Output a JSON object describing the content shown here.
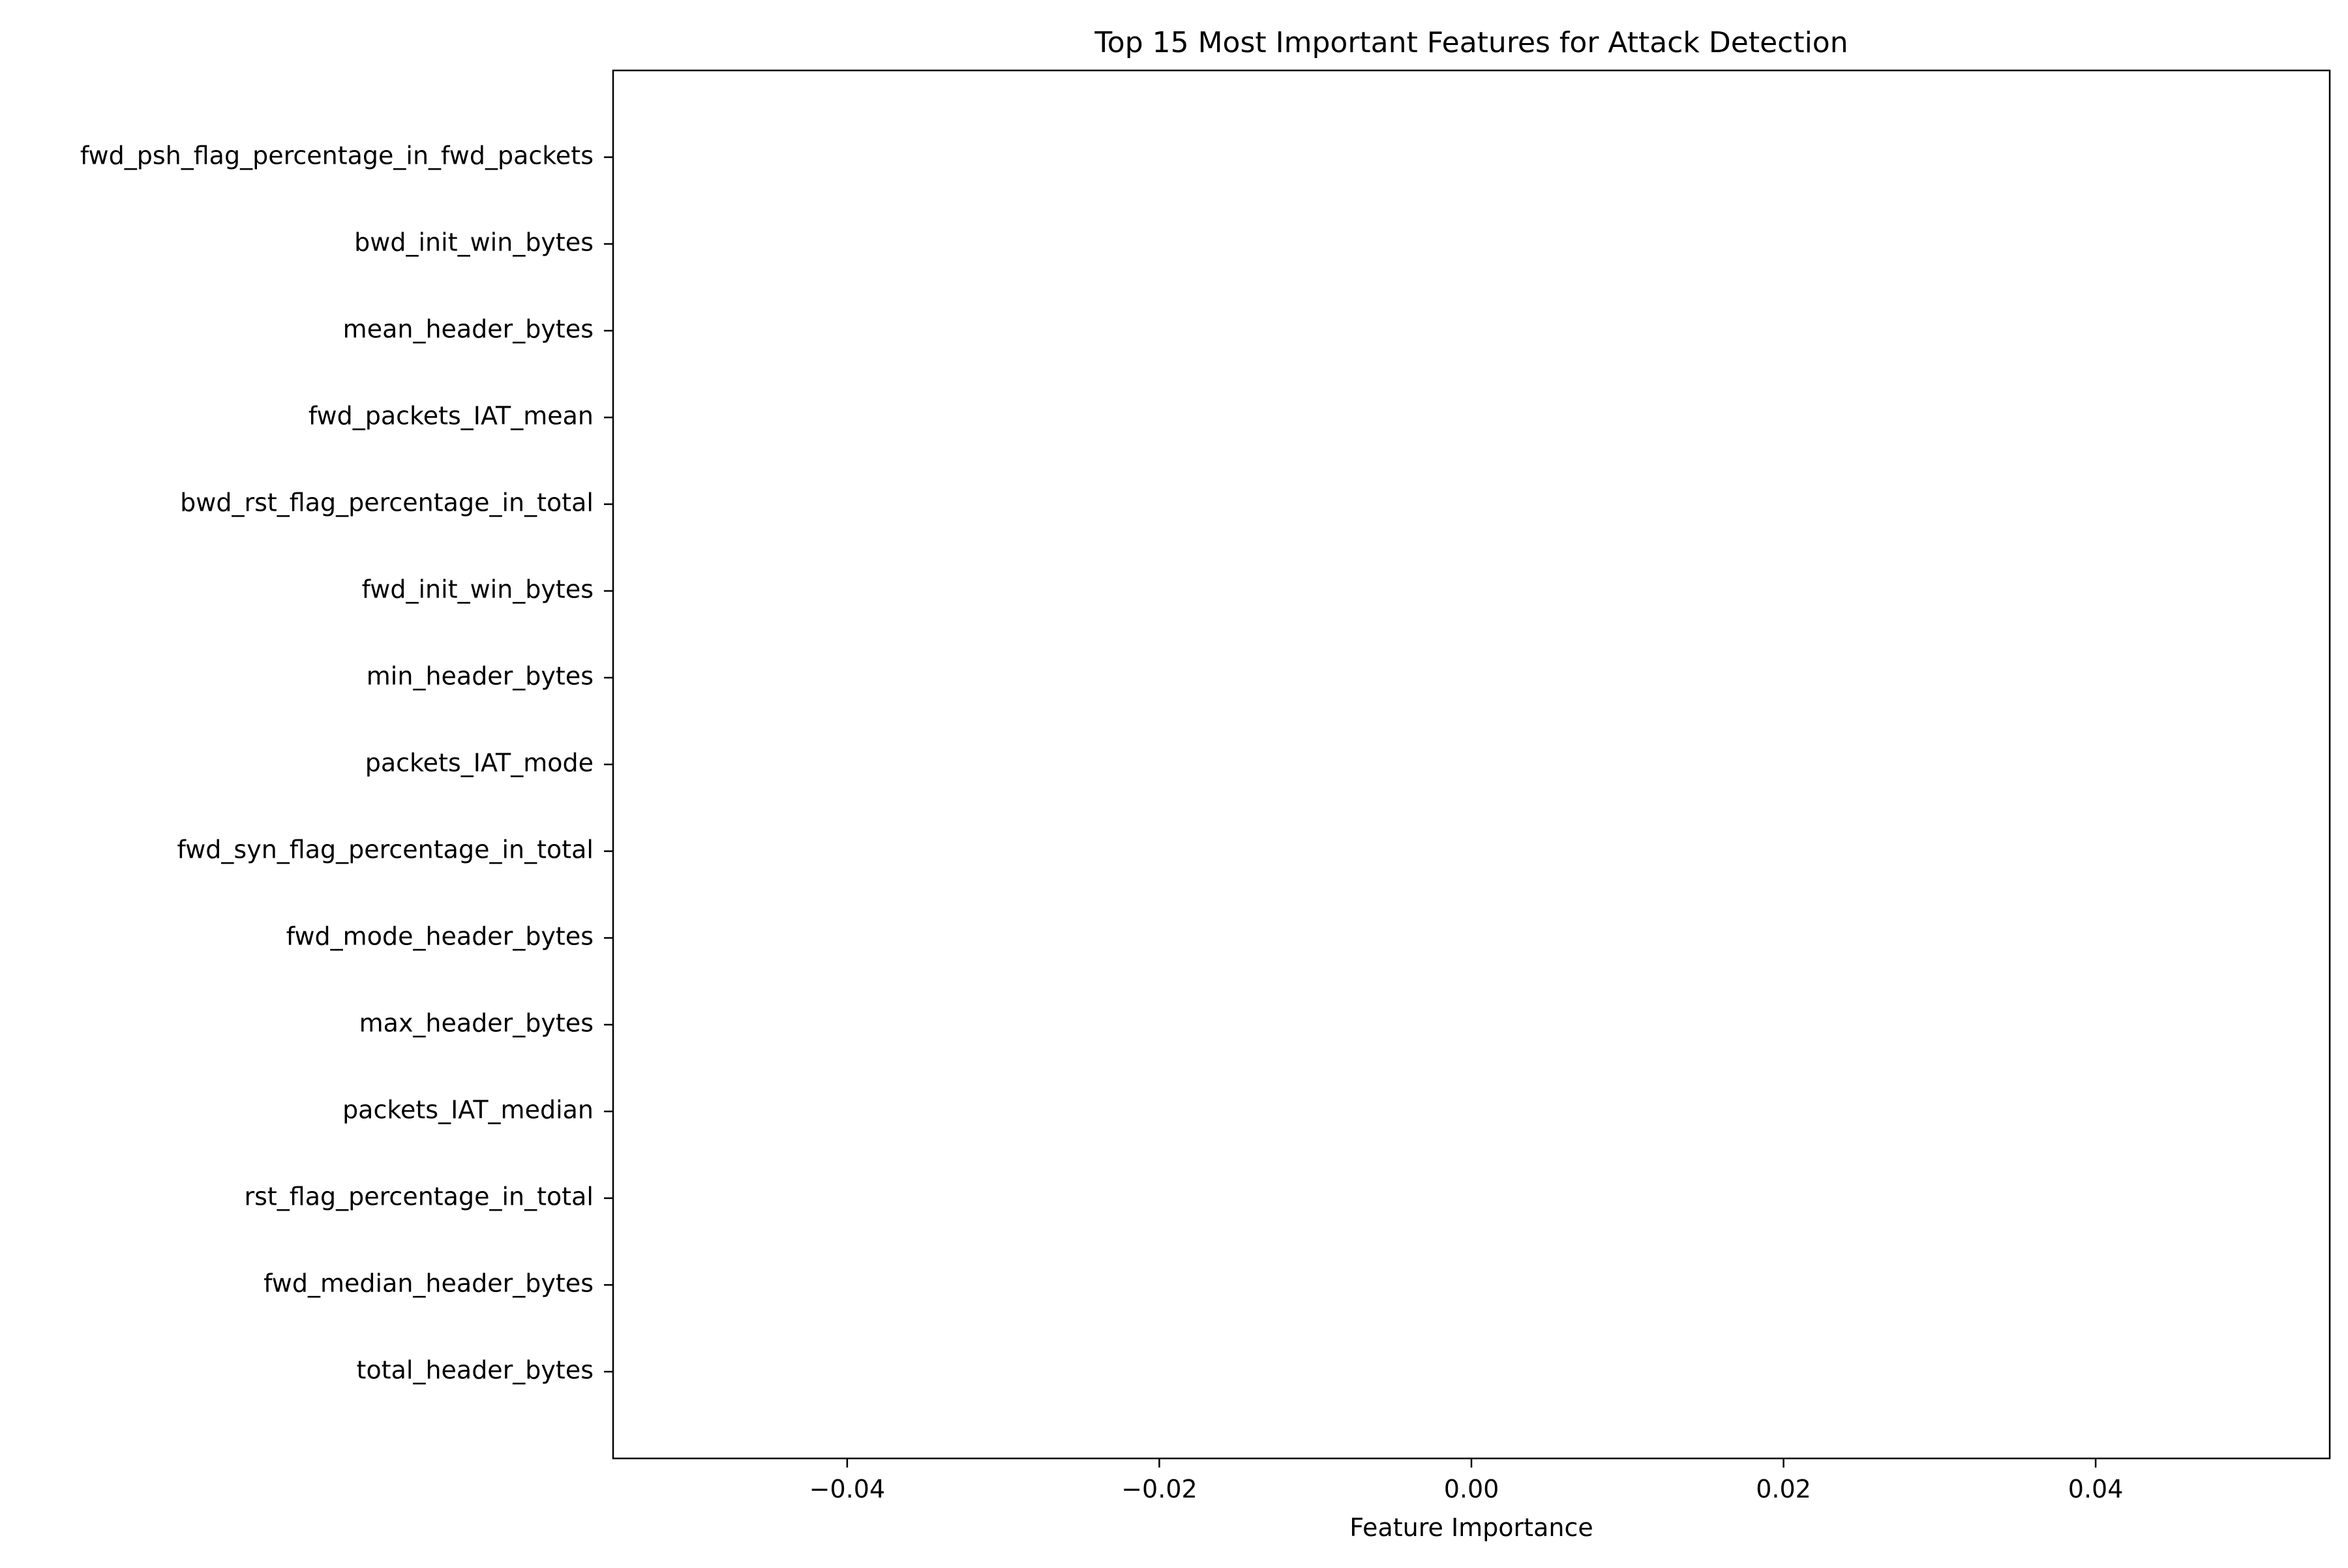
{
  "chart_data": {
    "type": "bar",
    "orientation": "horizontal",
    "title": "Top 15 Most Important Features for Attack Detection",
    "xlabel": "Feature Importance",
    "ylabel": "",
    "categories": [
      "fwd_psh_flag_percentage_in_fwd_packets",
      "bwd_init_win_bytes",
      "mean_header_bytes",
      "fwd_packets_IAT_mean",
      "bwd_rst_flag_percentage_in_total",
      "fwd_init_win_bytes",
      "min_header_bytes",
      "packets_IAT_mode",
      "fwd_syn_flag_percentage_in_total",
      "fwd_mode_header_bytes",
      "max_header_bytes",
      "packets_IAT_median",
      "rst_flag_percentage_in_total",
      "fwd_median_header_bytes",
      "total_header_bytes"
    ],
    "values": [
      0,
      0,
      0,
      0,
      0,
      0,
      0,
      0,
      0,
      0,
      0,
      0,
      0,
      0,
      0
    ],
    "xlim": [
      -0.055,
      0.055
    ],
    "xticks": [
      -0.04,
      -0.02,
      0.0,
      0.02,
      0.04
    ],
    "xtick_labels": [
      "−0.04",
      "−0.02",
      "0.00",
      "0.02",
      "0.04"
    ],
    "grid": false,
    "legend": "none"
  }
}
